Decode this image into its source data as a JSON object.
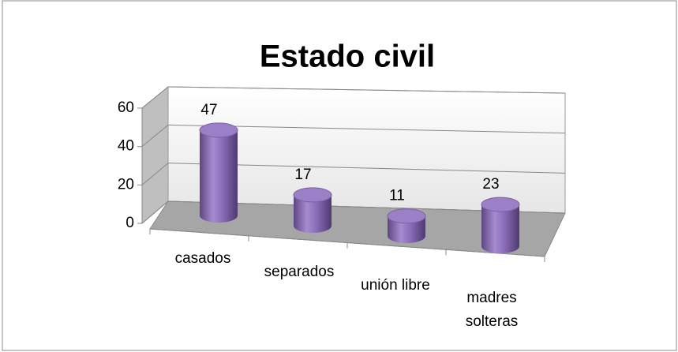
{
  "chart_data": {
    "type": "bar3d",
    "title": "Estado civil",
    "categories": [
      "casados",
      "separados",
      "unión libre",
      "madres solteras"
    ],
    "values": [
      47,
      17,
      11,
      23
    ],
    "color": "#8064a2",
    "ylim": [
      0,
      60
    ],
    "yticks": [
      0,
      20,
      40,
      60
    ],
    "grid": true
  }
}
